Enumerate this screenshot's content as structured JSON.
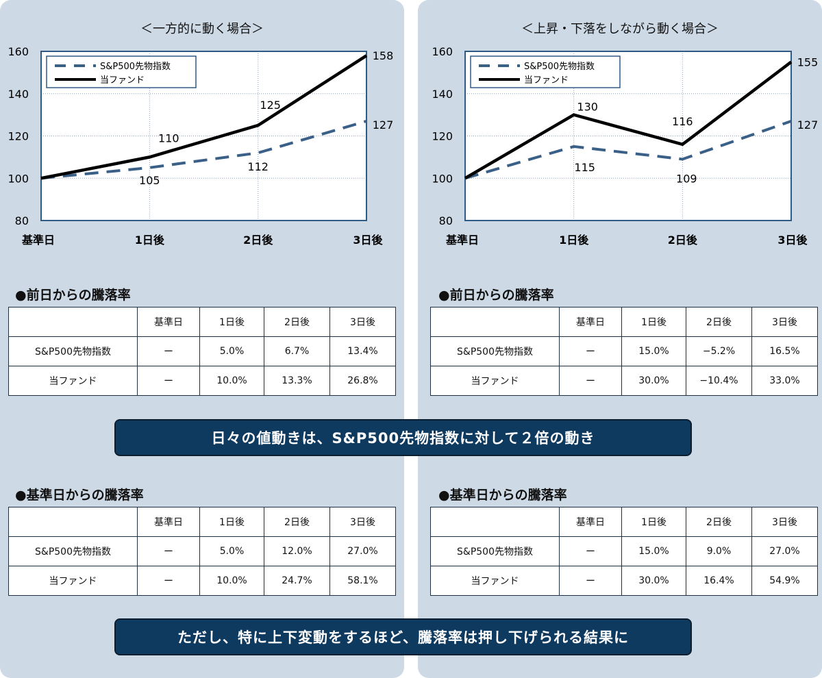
{
  "chart_data": [
    {
      "type": "line",
      "title": "＜一方的に動く場合＞",
      "categories": [
        "基準日",
        "1日後",
        "2日後",
        "3日後"
      ],
      "series": [
        {
          "name": "S&P500先物指数",
          "style": "dashed",
          "color": "#3b6088",
          "values": [
            100,
            105,
            112,
            127
          ]
        },
        {
          "name": "当ファンド",
          "style": "solid",
          "color": "#000000",
          "values": [
            100,
            110,
            125,
            158
          ]
        }
      ],
      "ylim": [
        80,
        160
      ],
      "yticks": [
        80,
        100,
        120,
        140,
        160
      ],
      "grid": true,
      "legend": "top-left"
    },
    {
      "type": "line",
      "title": "＜上昇・下落をしながら動く場合＞",
      "categories": [
        "基準日",
        "1日後",
        "2日後",
        "3日後"
      ],
      "series": [
        {
          "name": "S&P500先物指数",
          "style": "dashed",
          "color": "#3b6088",
          "values": [
            100,
            115,
            109,
            127
          ]
        },
        {
          "name": "当ファンド",
          "style": "solid",
          "color": "#000000",
          "values": [
            100,
            130,
            116,
            155
          ]
        }
      ],
      "ylim": [
        80,
        160
      ],
      "yticks": [
        80,
        100,
        120,
        140,
        160
      ],
      "grid": true,
      "legend": "top-left"
    }
  ],
  "tables": {
    "header": [
      "",
      "基準日",
      "1日後",
      "2日後",
      "3日後"
    ],
    "daily_title": "●前日からの騰落率",
    "cum_title": "●基準日からの騰落率",
    "left_daily": [
      [
        "S&P500先物指数",
        "ー",
        "5.0%",
        "6.7%",
        "13.4%"
      ],
      [
        "当ファンド",
        "ー",
        "10.0%",
        "13.3%",
        "26.8%"
      ]
    ],
    "left_cum": [
      [
        "S&P500先物指数",
        "ー",
        "5.0%",
        "12.0%",
        "27.0%"
      ],
      [
        "当ファンド",
        "ー",
        "10.0%",
        "24.7%",
        "58.1%"
      ]
    ],
    "right_daily": [
      [
        "S&P500先物指数",
        "ー",
        "15.0%",
        "−5.2%",
        "16.5%"
      ],
      [
        "当ファンド",
        "ー",
        "30.0%",
        "−10.4%",
        "33.0%"
      ]
    ],
    "right_cum": [
      [
        "S&P500先物指数",
        "ー",
        "15.0%",
        "9.0%",
        "27.0%"
      ],
      [
        "当ファンド",
        "ー",
        "30.0%",
        "16.4%",
        "54.9%"
      ]
    ]
  },
  "banners": {
    "top": "日々の値動きは、S&P500先物指数に対して２倍の動き",
    "bottom": "ただし、特に上下変動をするほど、騰落率は押し下げられる結果に"
  }
}
